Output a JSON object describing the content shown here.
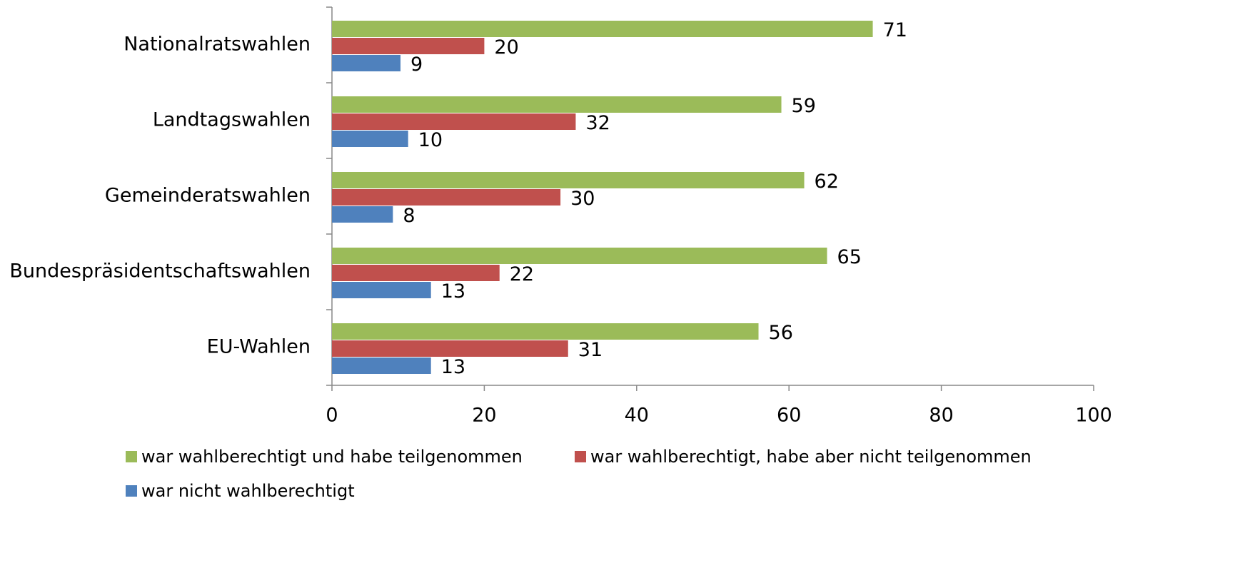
{
  "chart_data": {
    "type": "hbar",
    "categories": [
      "Nationalratswahlen",
      "Landtagswahlen",
      "Gemeinderatswahlen",
      "Bundespräsidentschaftswahlen",
      "EU-Wahlen"
    ],
    "series": [
      {
        "name": "war wahlberechtigt und habe teilgenommen",
        "color": "#9bbb59",
        "values": [
          71,
          59,
          62,
          65,
          56
        ]
      },
      {
        "name": "war wahlberechtigt, habe aber nicht teilgenommen",
        "color": "#c0504d",
        "values": [
          20,
          32,
          30,
          22,
          31
        ]
      },
      {
        "name": "war nicht wahlberechtigt",
        "color": "#4f81bd",
        "values": [
          9,
          10,
          8,
          13,
          13
        ]
      }
    ],
    "xlim": [
      0,
      100
    ],
    "xticks": [
      0,
      20,
      40,
      60,
      80,
      100
    ],
    "legend": "bottom"
  }
}
